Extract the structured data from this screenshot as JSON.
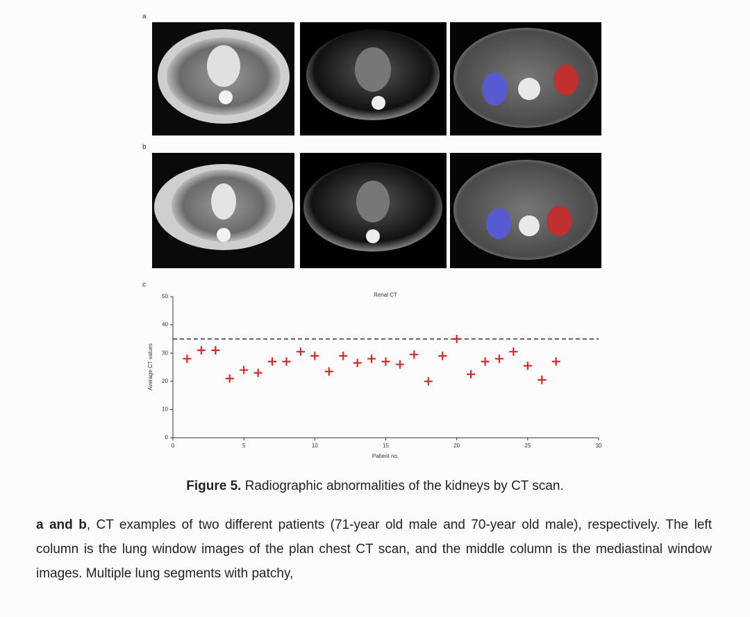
{
  "panel_labels": [
    "a",
    "b",
    "c"
  ],
  "chart_data": {
    "type": "scatter",
    "title": "Renal CT",
    "x_label": "Patient no.",
    "y_label": "Average CT values",
    "x": [
      1,
      2,
      3,
      4,
      5,
      6,
      7,
      8,
      9,
      10,
      11,
      12,
      13,
      14,
      15,
      16,
      17,
      18,
      19,
      20,
      21,
      22,
      23,
      24,
      25,
      26,
      27
    ],
    "values": [
      28,
      31,
      31,
      21,
      24,
      23,
      27,
      27,
      30.5,
      29,
      23.5,
      29,
      26.5,
      28,
      27,
      26,
      29.5,
      20,
      29,
      35,
      22.5,
      27,
      28,
      30.5,
      25.5,
      20.5,
      27
    ],
    "color": "#d42a2a",
    "marker": "plus",
    "xlim": [
      0,
      30
    ],
    "xticks": [
      0,
      5,
      10,
      15,
      20,
      25,
      30
    ],
    "ylim": [
      0,
      50
    ],
    "yticks": [
      0,
      10,
      20,
      30,
      40,
      50
    ],
    "reference_line": 35,
    "grid": false
  },
  "caption": {
    "label": "Figure 5.",
    "text": "Radiographic abnormalities of the kidneys by CT scan."
  },
  "paragraph": {
    "lead": "a and b",
    "text": ", CT examples of two different patients (71-year old male and 70-year old male), respectively. The left column is the lung window images of the plan chest CT scan, and the middle column is the mediastinal window images. Multiple lung segments with patchy,"
  }
}
